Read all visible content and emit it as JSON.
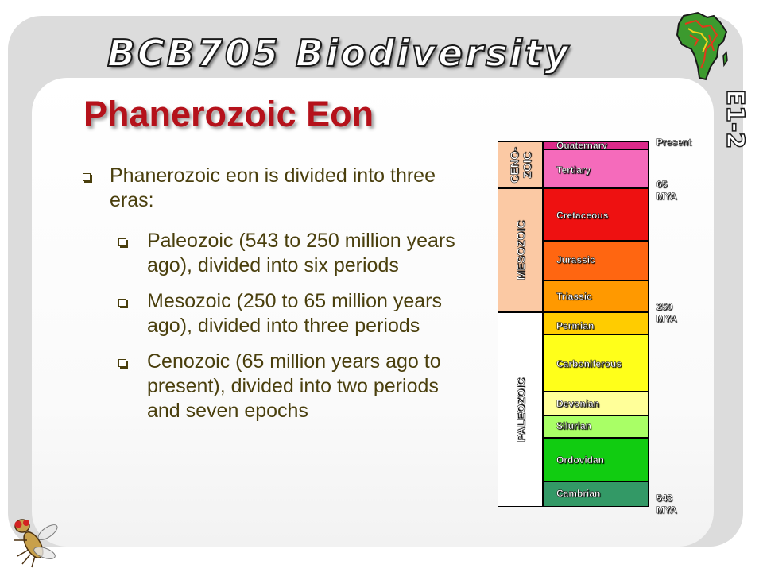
{
  "header": {
    "brand": "BCB705 Biodiversity",
    "slide_code": "E1-2",
    "brand_icon": "africa-map-icon",
    "footer_icon": "fly-icon"
  },
  "slide": {
    "title": "Phanerozoic Eon",
    "bullets": [
      {
        "level": 1,
        "text": "Phanerozoic eon is divided into three eras:"
      },
      {
        "level": 2,
        "text": "Paleozoic (543 to 250 million years ago), divided into six periods"
      },
      {
        "level": 2,
        "text": "Mesozoic (250 to 65 million years ago), divided into three periods"
      },
      {
        "level": 2,
        "text": "Cenozoic (65 million years ago to present), divided into two periods and seven epochs"
      }
    ]
  },
  "timescale": {
    "eras": [
      {
        "name": "CENO-ZOIC"
      },
      {
        "name": "MESOZOIC"
      },
      {
        "name": "PALEOZOIC"
      }
    ],
    "periods": [
      {
        "name": "Quaternary",
        "color": "#dd2b8a"
      },
      {
        "name": "Tertiary",
        "color": "#f56bbb"
      },
      {
        "name": "Cretaceous",
        "color": "#ee1111"
      },
      {
        "name": "Jurassic",
        "color": "#ff6611"
      },
      {
        "name": "Triassic",
        "color": "#ff9900"
      },
      {
        "name": "Permian",
        "color": "#ffcc00"
      },
      {
        "name": "Carboniferous",
        "color": "#ffff1a"
      },
      {
        "name": "Devonian",
        "color": "#ffff99"
      },
      {
        "name": "Silurian",
        "color": "#a9ff66"
      },
      {
        "name": "Ordovidan",
        "color": "#11cc11"
      },
      {
        "name": "Cambrian",
        "color": "#339966"
      }
    ],
    "time_labels": [
      {
        "line1": "Present",
        "line2": ""
      },
      {
        "line1": "65",
        "line2": "MYA"
      },
      {
        "line1": "250",
        "line2": "MYA"
      },
      {
        "line1": "543",
        "line2": "MYA"
      }
    ]
  }
}
